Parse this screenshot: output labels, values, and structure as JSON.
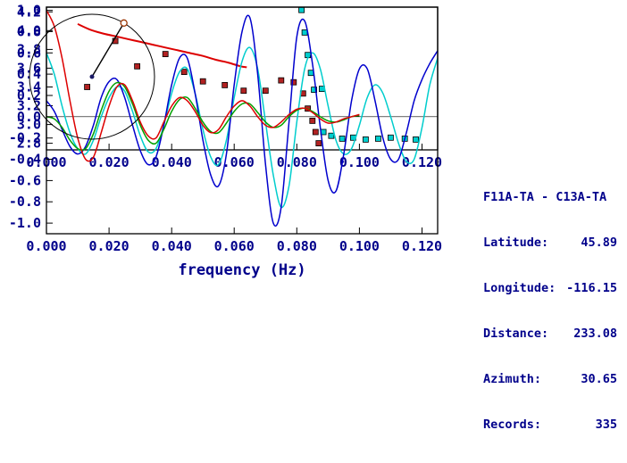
{
  "colors": {
    "text": "#00008b",
    "frame": "#000000",
    "dial_center": "#1a1a66",
    "dial_marker": "#993300"
  },
  "station_info": {
    "title": "F11A-TA - C13A-TA",
    "rows": [
      {
        "label": "Latitude:",
        "value": "45.89"
      },
      {
        "label": "Longitude:",
        "value": "-116.15"
      },
      {
        "label": "Distance:",
        "value": "233.08"
      },
      {
        "label": "Azimuth:",
        "value": "30.65"
      },
      {
        "label": "Records:",
        "value": "335"
      }
    ]
  },
  "azimuth_dial": {
    "azimuth_deg": 30.65
  },
  "chart_data": [
    {
      "name": "dispersion",
      "type": "scatter",
      "title": "",
      "xlabel": "",
      "ylabel": "",
      "xlim": [
        0,
        0.125
      ],
      "ylim": [
        2.73,
        4.25
      ],
      "xticks": [
        0,
        0.02,
        0.04,
        0.06,
        0.08,
        0.1,
        0.12
      ],
      "xtick_labels": [
        "0.000",
        "0.020",
        "0.040",
        "0.060",
        "0.080",
        "0.100",
        "0.120"
      ],
      "yticks": [
        2.8,
        3.0,
        3.2,
        3.4,
        3.6,
        3.8,
        4.0,
        4.2
      ],
      "ytick_labels": [
        "2.8",
        "3.0",
        "3.2",
        "3.4",
        "3.6",
        "3.8",
        "4.0",
        "4.2"
      ],
      "grid": false,
      "series": [
        {
          "name": "reference-curve",
          "type": "line",
          "color": "#dd0000",
          "width": 2,
          "x": [
            0.01,
            0.014,
            0.018,
            0.022,
            0.026,
            0.03,
            0.034,
            0.038,
            0.042,
            0.046,
            0.05,
            0.054,
            0.058,
            0.062,
            0.064
          ],
          "y": [
            4.07,
            4.01,
            3.97,
            3.94,
            3.91,
            3.88,
            3.85,
            3.82,
            3.79,
            3.76,
            3.73,
            3.69,
            3.66,
            3.62,
            3.61
          ]
        },
        {
          "name": "picks-red",
          "type": "scatter",
          "color": "#b22222",
          "marker": "square",
          "x": [
            0.013,
            0.022,
            0.029,
            0.038,
            0.044,
            0.05,
            0.057,
            0.063,
            0.07,
            0.075,
            0.079,
            0.082,
            0.0835,
            0.085,
            0.086,
            0.087
          ],
          "y": [
            3.4,
            3.89,
            3.62,
            3.75,
            3.56,
            3.46,
            3.42,
            3.36,
            3.36,
            3.47,
            3.45,
            3.33,
            3.17,
            3.04,
            2.92,
            2.8
          ]
        },
        {
          "name": "picks-cyan",
          "type": "scatter",
          "color": "#00cdcd",
          "marker": "square",
          "x": [
            0.0815,
            0.0825,
            0.0835,
            0.0845,
            0.0855,
            0.088,
            0.0885,
            0.091,
            0.0945,
            0.098,
            0.102,
            0.106,
            0.11,
            0.1145,
            0.118
          ],
          "y": [
            4.22,
            3.98,
            3.74,
            3.55,
            3.37,
            3.38,
            2.92,
            2.88,
            2.85,
            2.86,
            2.84,
            2.85,
            2.86,
            2.85,
            2.84
          ]
        }
      ]
    },
    {
      "name": "waveforms",
      "type": "line",
      "title": "",
      "xlabel": "frequency (Hz)",
      "ylabel": "",
      "xlim": [
        0,
        0.125
      ],
      "ylim": [
        -1.1,
        1.03
      ],
      "xticks": [
        0,
        0.02,
        0.04,
        0.06,
        0.08,
        0.1,
        0.12
      ],
      "xtick_labels": [
        "0.000",
        "0.020",
        "0.040",
        "0.060",
        "0.080",
        "0.100",
        "0.120"
      ],
      "yticks": [
        -1.0,
        -0.8,
        -0.6,
        -0.4,
        -0.2,
        0.0,
        0.2,
        0.4,
        0.6,
        0.8,
        1.0
      ],
      "ytick_labels": [
        "-1.0",
        "-0.8",
        "-0.6",
        "-0.4",
        "-0.2",
        "0.0",
        "0.2",
        "0.4",
        "0.6",
        "0.8",
        "1.0"
      ],
      "zero_line": true,
      "grid": false,
      "series": [
        {
          "name": "stack-cyan",
          "type": "line",
          "color": "#00cdcd",
          "width": 1.5,
          "x0": 0,
          "dx": 0.0025,
          "y": [
            0.6,
            0.4,
            0.1,
            -0.15,
            -0.3,
            -0.35,
            -0.22,
            0.0,
            0.18,
            0.28,
            0.24,
            0.05,
            -0.18,
            -0.33,
            -0.3,
            -0.08,
            0.22,
            0.42,
            0.45,
            0.22,
            -0.12,
            -0.38,
            -0.45,
            -0.22,
            0.18,
            0.52,
            0.65,
            0.45,
            -0.05,
            -0.55,
            -0.85,
            -0.65,
            -0.05,
            0.45,
            0.6,
            0.45,
            0.1,
            -0.22,
            -0.35,
            -0.3,
            -0.08,
            0.18,
            0.3,
            0.22,
            0.0,
            -0.25,
            -0.42,
            -0.4,
            -0.1,
            0.3,
            0.55
          ]
        },
        {
          "name": "stack-blue",
          "type": "line",
          "color": "#0000cd",
          "width": 1.5,
          "x0": 0,
          "dx": 0.0025,
          "y": [
            0.15,
            0.05,
            -0.12,
            -0.28,
            -0.35,
            -0.28,
            -0.08,
            0.18,
            0.33,
            0.35,
            0.18,
            -0.08,
            -0.32,
            -0.45,
            -0.38,
            -0.08,
            0.3,
            0.55,
            0.55,
            0.22,
            -0.22,
            -0.55,
            -0.65,
            -0.35,
            0.3,
            0.8,
            0.93,
            0.4,
            -0.45,
            -1.0,
            -0.85,
            -0.05,
            0.75,
            0.9,
            0.5,
            -0.1,
            -0.6,
            -0.7,
            -0.35,
            0.15,
            0.45,
            0.45,
            0.15,
            -0.2,
            -0.4,
            -0.4,
            -0.15,
            0.15,
            0.35,
            0.5,
            0.62
          ]
        },
        {
          "name": "fit-green",
          "type": "line",
          "color": "#00a000",
          "width": 1.5,
          "x0": 0,
          "dx": 0.0025,
          "y": [
            0.0,
            -0.02,
            -0.1,
            -0.22,
            -0.3,
            -0.3,
            -0.16,
            0.06,
            0.24,
            0.32,
            0.28,
            0.12,
            -0.08,
            -0.22,
            -0.25,
            -0.12,
            0.05,
            0.16,
            0.18,
            0.08,
            -0.05,
            -0.14,
            -0.15,
            -0.06,
            0.05,
            0.12,
            0.12,
            0.04,
            -0.05,
            -0.1,
            -0.08,
            0.0,
            0.06,
            0.08,
            0.05,
            0.0,
            -0.04,
            -0.05,
            -0.03,
            0.0,
            0.01
          ]
        },
        {
          "name": "fit-red",
          "type": "line",
          "color": "#dd0000",
          "width": 1.5,
          "x0": 0,
          "dx": 0.0025,
          "y": [
            1.0,
            0.85,
            0.55,
            0.15,
            -0.2,
            -0.4,
            -0.38,
            -0.15,
            0.1,
            0.28,
            0.3,
            0.15,
            -0.05,
            -0.18,
            -0.2,
            -0.05,
            0.1,
            0.18,
            0.15,
            0.05,
            -0.08,
            -0.15,
            -0.12,
            0.0,
            0.1,
            0.15,
            0.1,
            0.0,
            -0.08,
            -0.1,
            -0.05,
            0.02,
            0.07,
            0.08,
            0.04,
            -0.02,
            -0.06,
            -0.05,
            -0.02,
            0.0,
            0.02
          ]
        }
      ]
    }
  ]
}
